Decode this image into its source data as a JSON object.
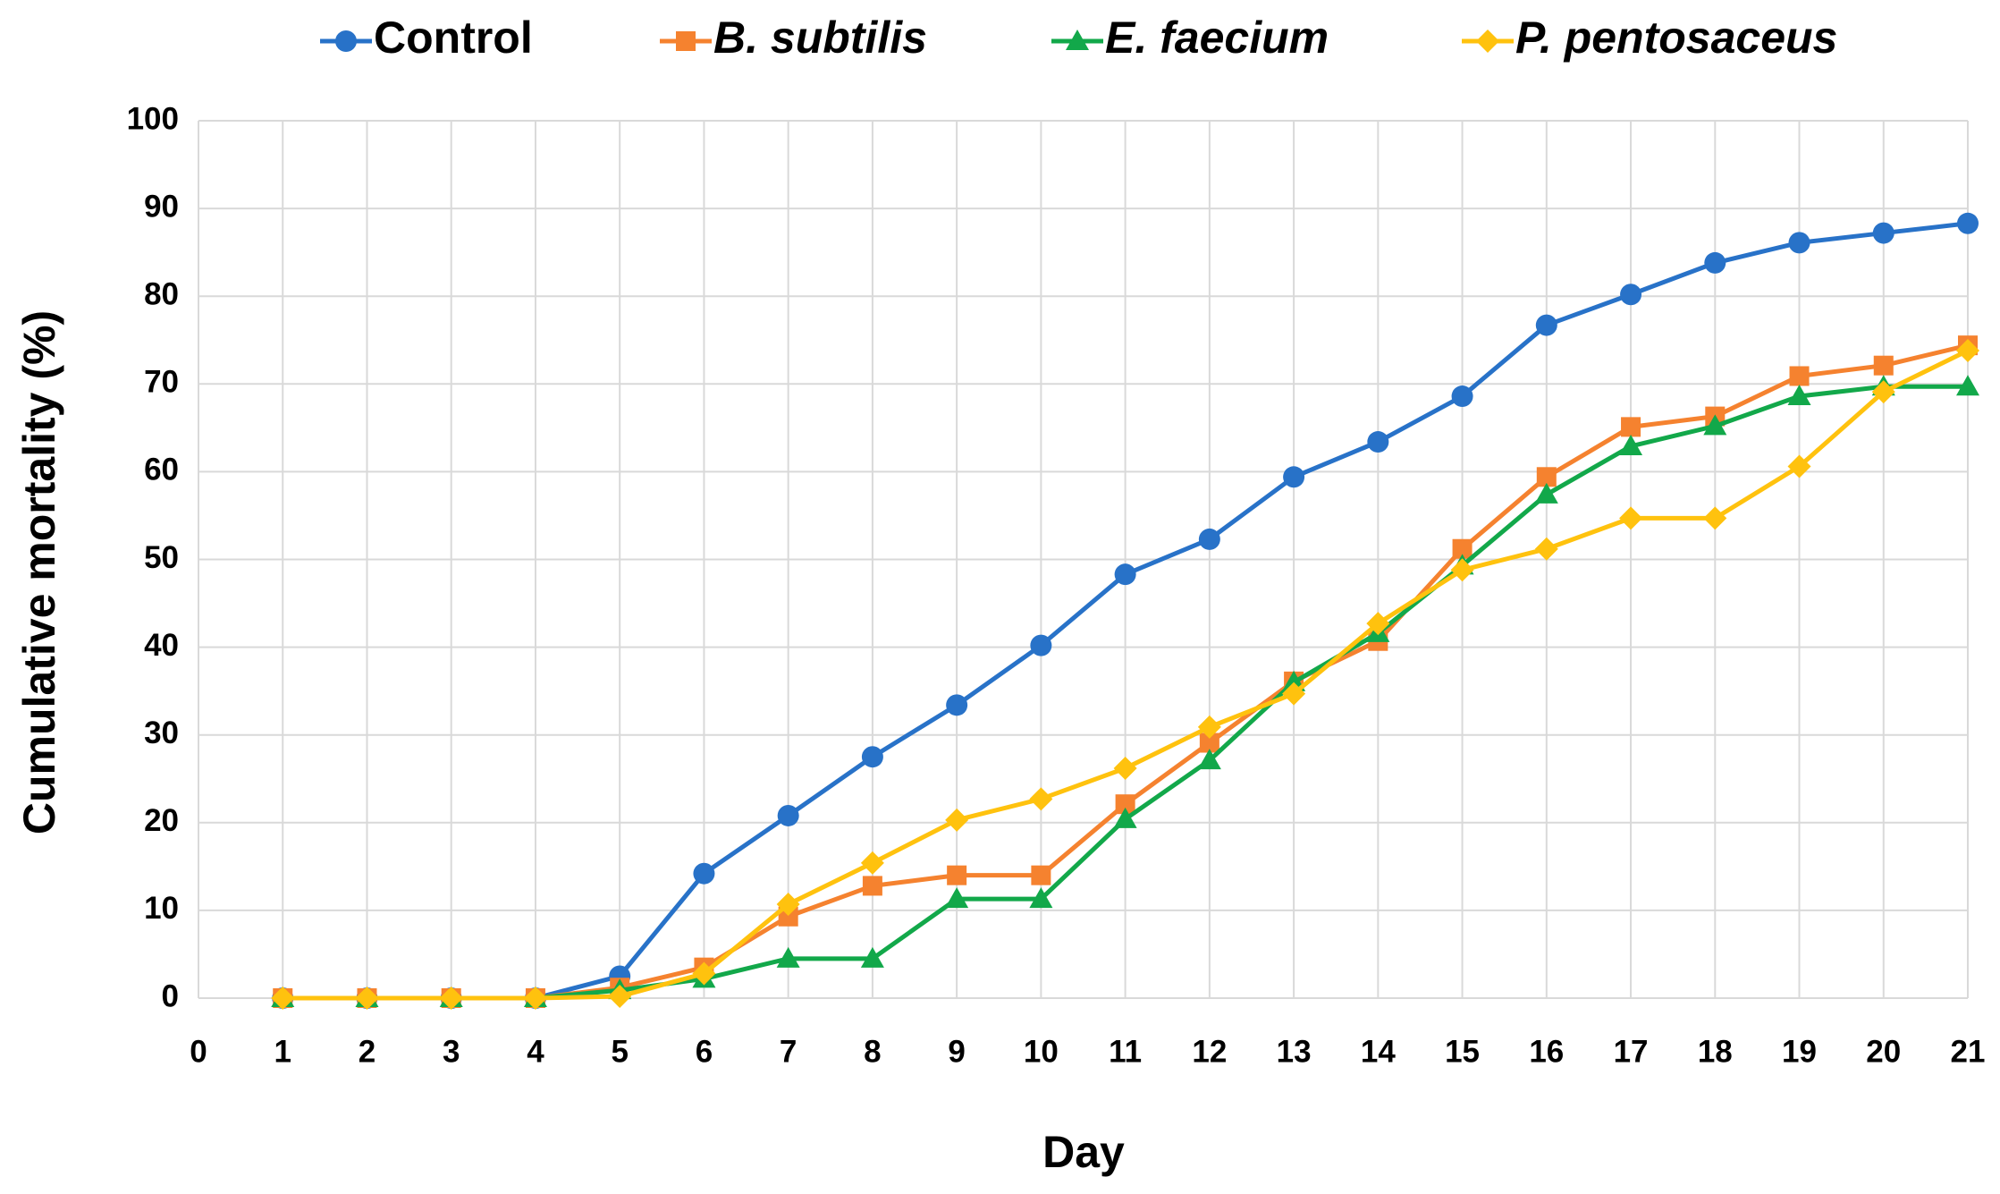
{
  "chart_data": {
    "type": "line",
    "x_label": "Day",
    "y_label": "Cumulative mortality (%)",
    "x": [
      1,
      2,
      3,
      4,
      5,
      6,
      7,
      8,
      9,
      10,
      11,
      12,
      13,
      14,
      15,
      16,
      17,
      18,
      19,
      20,
      21
    ],
    "series": [
      {
        "name": "Control",
        "color": "#2872c8",
        "marker": "circle",
        "values": [
          0,
          0,
          0,
          0,
          2.5,
          14.2,
          20.8,
          27.5,
          33.4,
          40.2,
          48.3,
          52.3,
          59.4,
          63.4,
          68.6,
          76.7,
          80.2,
          83.8,
          86.1,
          87.2,
          88.3
        ]
      },
      {
        "name": "B. subtilis",
        "color": "#f5822f",
        "marker": "square",
        "values": [
          0,
          0,
          0,
          0,
          1.2,
          3.5,
          9.3,
          12.8,
          14,
          14,
          22.1,
          29.1,
          36.1,
          40.7,
          51.2,
          59.4,
          65.1,
          66.3,
          70.9,
          72.1,
          74.4
        ]
      },
      {
        "name": "E. faecium",
        "color": "#12a84a",
        "marker": "triangle",
        "values": [
          0,
          0,
          0,
          0,
          0.9,
          2.2,
          4.5,
          4.5,
          11.3,
          11.3,
          20.4,
          27.1,
          36,
          41.6,
          49.3,
          57.4,
          62.9,
          65.2,
          68.6,
          69.7,
          69.7
        ]
      },
      {
        "name": "P. pentosaceus",
        "color": "#ffc20e",
        "marker": "diamond",
        "values": [
          0,
          0,
          0,
          0,
          0.2,
          2.8,
          10.7,
          15.4,
          20.3,
          22.7,
          26.2,
          30.9,
          34.7,
          42.7,
          48.8,
          51.2,
          54.7,
          54.7,
          60.6,
          69.1,
          73.8
        ]
      }
    ],
    "xlim": [
      0,
      21
    ],
    "xticks": [
      0,
      1,
      2,
      3,
      4,
      5,
      6,
      7,
      8,
      9,
      10,
      11,
      12,
      13,
      14,
      15,
      16,
      17,
      18,
      19,
      20,
      21
    ],
    "ylim": [
      0,
      100
    ],
    "yticks": [
      0,
      10,
      20,
      30,
      40,
      50,
      60,
      70,
      80,
      90,
      100
    ],
    "grid": true,
    "legend": "top"
  }
}
